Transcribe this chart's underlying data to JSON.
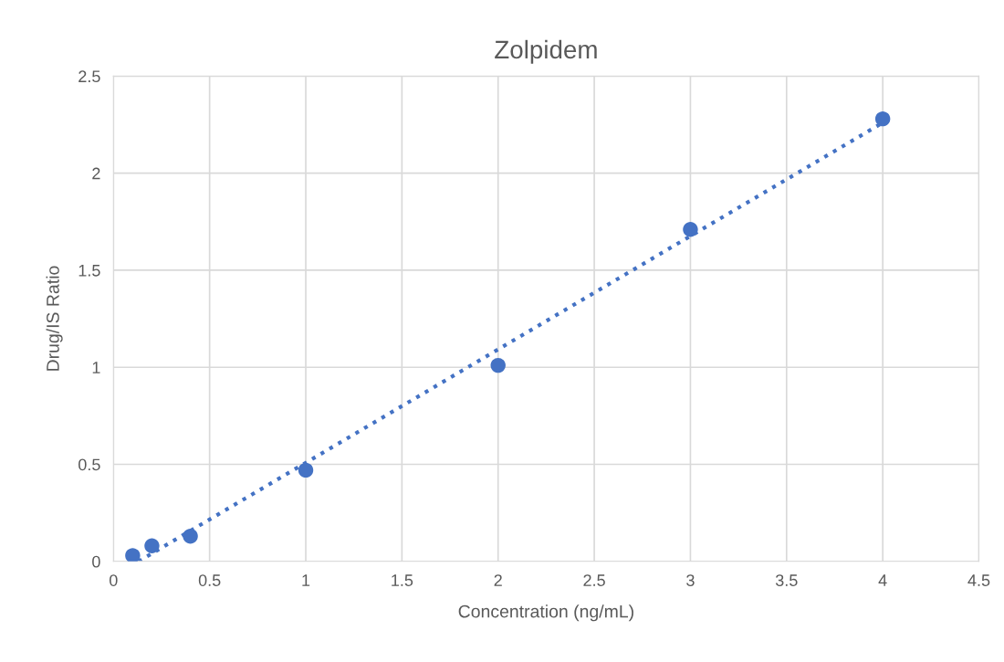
{
  "chart_data": {
    "type": "scatter",
    "title": "Zolpidem",
    "xlabel": "Concentration (ng/mL)",
    "ylabel": "Drug/IS Ratio",
    "xlim": [
      0,
      4.5
    ],
    "xticks": [
      0,
      0.5,
      1,
      1.5,
      2,
      2.5,
      3,
      3.5,
      4,
      4.5
    ],
    "ylim": [
      0,
      2.5
    ],
    "yticks": [
      0,
      0.5,
      1,
      1.5,
      2,
      2.5
    ],
    "grid": true,
    "marker": "circle",
    "series": [
      {
        "type": "scatter",
        "color": "#4472c4",
        "x": [
          0.1,
          0.2,
          0.4,
          1,
          2,
          3,
          4
        ],
        "values": [
          0.03,
          0.08,
          0.13,
          0.47,
          1.01,
          1.71,
          2.28
        ]
      },
      {
        "type": "line",
        "color": "#4472c4",
        "line_style": "dotted",
        "marker": "none",
        "x": [
          0.13,
          4
        ],
        "values": [
          0,
          2.26
        ]
      }
    ]
  }
}
